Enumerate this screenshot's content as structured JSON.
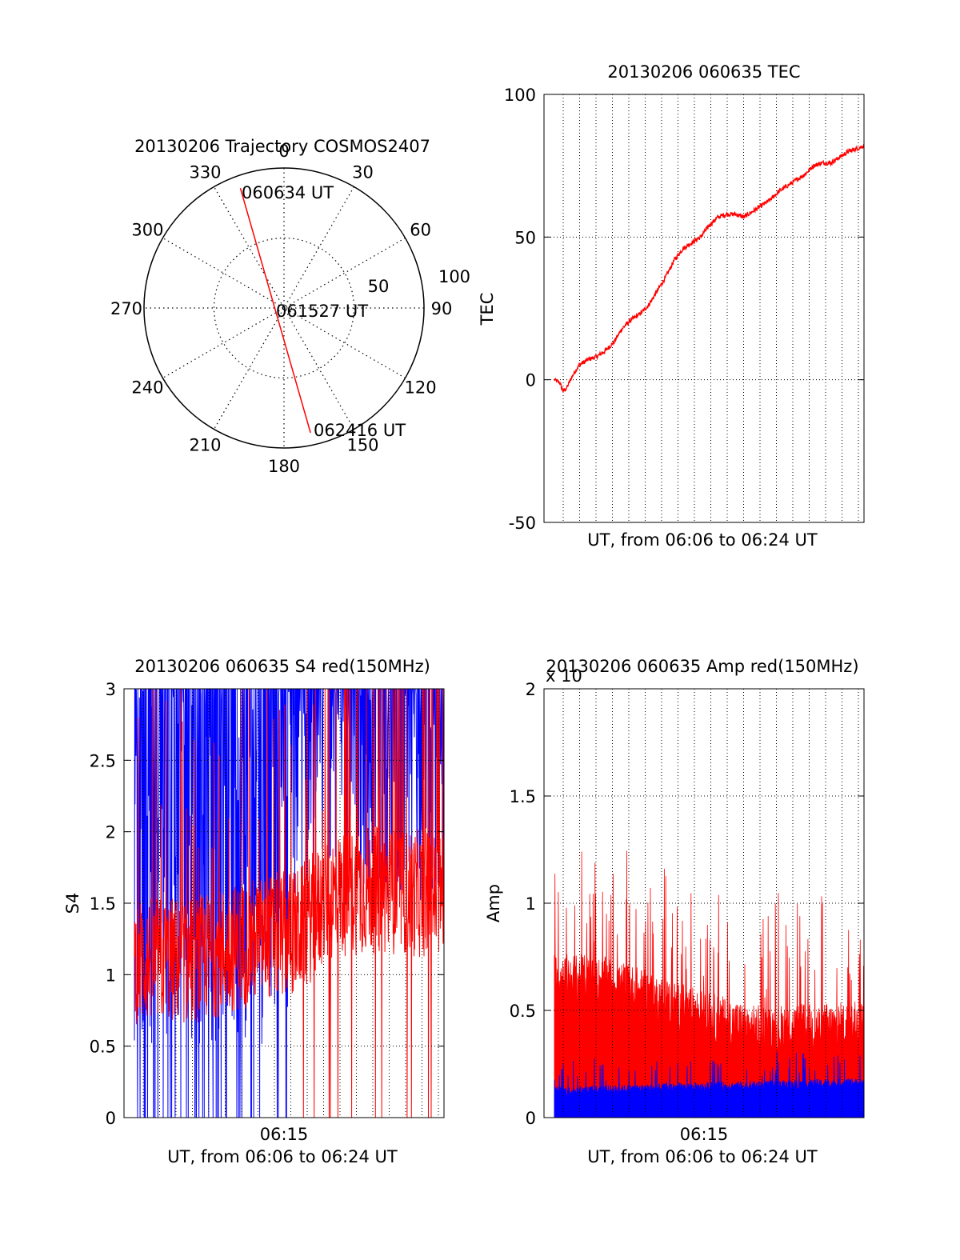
{
  "chart_data": [
    {
      "id": "polar",
      "type": "scatter",
      "title": "20130206 Trajectory COSMOS2407",
      "azimuth_labels": [
        "0",
        "30",
        "60",
        "90",
        "120",
        "150",
        "180",
        "210",
        "240",
        "270",
        "300",
        "330"
      ],
      "radial_labels": [
        "50",
        "100"
      ],
      "track": {
        "start": {
          "label": "060634 UT",
          "azimuth_deg": 340,
          "elevation_deg": 8
        },
        "mid": {
          "label": "061527 UT",
          "azimuth_deg": 0,
          "elevation_deg": 90
        },
        "end": {
          "label": "062416 UT",
          "azimuth_deg": 168,
          "elevation_deg": 8
        }
      },
      "color": "#ff0000"
    },
    {
      "id": "tec",
      "type": "line",
      "title": "20130206 060635 TEC",
      "ylabel": "TEC",
      "xlabel": "UT, from 06:06 to 06:24 UT",
      "ylim": [
        -50,
        100
      ],
      "yticks": [
        "-50",
        "0",
        "50",
        "100"
      ],
      "x_minutes_range": [
        6.0,
        24.4
      ],
      "series": [
        {
          "x": [
            6.6,
            6.9,
            7.1,
            7.3,
            7.6,
            8.0,
            8.5,
            9.0,
            9.5,
            10.0,
            10.5,
            11.0,
            11.5,
            12.0,
            12.5,
            13.0,
            13.5,
            14.0,
            14.5,
            15.0,
            15.5,
            16.0,
            16.5,
            17.0,
            17.5,
            18.0,
            18.5,
            19.0,
            19.5,
            20.0,
            20.5,
            21.0,
            21.5,
            22.0,
            22.5,
            23.0,
            23.5,
            24.0,
            24.4
          ],
          "values": [
            0,
            -1,
            -4,
            -3,
            1,
            5,
            7,
            8,
            10,
            13,
            18,
            21,
            23,
            26,
            31,
            36,
            42,
            46,
            48,
            50,
            54,
            57,
            58,
            58,
            57,
            59,
            61,
            63,
            66,
            68,
            70,
            72,
            75,
            76,
            76,
            78,
            80,
            81,
            82
          ]
        }
      ],
      "color": "#ff0000",
      "grid": true
    },
    {
      "id": "s4",
      "type": "line",
      "title": "20130206 060635 S4 red(150MHz)",
      "ylabel": "S4",
      "xlabel": "UT, from 06:06 to 06:24 UT",
      "xtick_label": "06:15",
      "ylim": [
        0,
        3
      ],
      "yticks": [
        "0",
        "0.5",
        "1",
        "1.5",
        "2",
        "2.5",
        "3"
      ],
      "series_colors": [
        "#0000ff",
        "#ff0000"
      ],
      "red_level_profile": {
        "x": [
          6.6,
          10,
          14,
          16,
          18,
          20,
          24.4
        ],
        "values": [
          1.1,
          1.1,
          1.25,
          1.3,
          1.55,
          1.6,
          1.55
        ]
      },
      "grid": true
    },
    {
      "id": "amp",
      "type": "area",
      "title": "20130206 060635 Amp red(150MHz)",
      "ylabel": "Amp",
      "xlabel": "UT, from 06:06 to 06:24 UT",
      "xtick_label": "06:15",
      "scale_label": "x 10",
      "ylim": [
        0,
        2
      ],
      "yticks": [
        "0",
        "0.5",
        "1",
        "1.5",
        "2"
      ],
      "series_colors": [
        "#ff0000",
        "#0000ff"
      ],
      "red_level_profile": {
        "x": [
          6.6,
          10,
          14,
          18,
          24.4
        ],
        "values": [
          0.65,
          0.62,
          0.5,
          0.4,
          0.42
        ]
      },
      "blue_level_profile": {
        "x": [
          6.6,
          24.4
        ],
        "values": [
          0.12,
          0.16
        ]
      },
      "grid": true
    }
  ]
}
